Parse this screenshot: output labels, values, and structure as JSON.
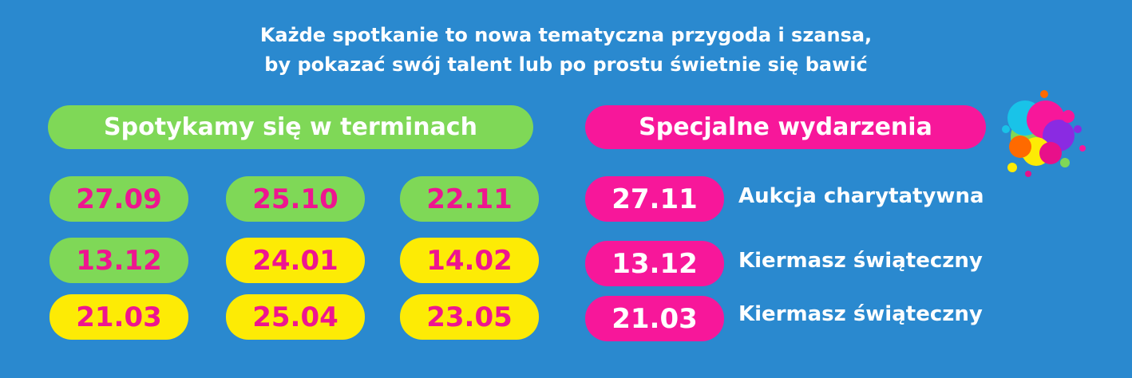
{
  "intro": {
    "line1": "Każde spotkanie to nowa tematyczna przygoda i szansa,",
    "line2": "by pokazać swój talent lub po prostu świetnie się bawić"
  },
  "schedule": {
    "heading": "Spotykamy się w terminach",
    "dates": [
      {
        "value": "27.09",
        "color": "green"
      },
      {
        "value": "25.10",
        "color": "green"
      },
      {
        "value": "22.11",
        "color": "green"
      },
      {
        "value": "13.12",
        "color": "green"
      },
      {
        "value": "24.01",
        "color": "yellow"
      },
      {
        "value": "14.02",
        "color": "yellow"
      },
      {
        "value": "21.03",
        "color": "yellow"
      },
      {
        "value": "25.04",
        "color": "yellow"
      },
      {
        "value": "23.05",
        "color": "yellow"
      }
    ]
  },
  "special": {
    "heading": "Specjalne wydarzenia",
    "events": [
      {
        "date": "27.11",
        "label": "Aukcja charytatywna"
      },
      {
        "date": "13.12",
        "label": "Kiermasz świąteczny"
      },
      {
        "date": "21.03",
        "label": "Kiermasz świąteczny"
      }
    ]
  },
  "colors": {
    "background": "#2a89cf",
    "green": "#7fd857",
    "yellow": "#fdeb05",
    "pink": "#f7179a",
    "date_text": "#ee1590",
    "white": "#ffffff"
  },
  "decoration": {
    "icon": "paint-splash-icon"
  }
}
